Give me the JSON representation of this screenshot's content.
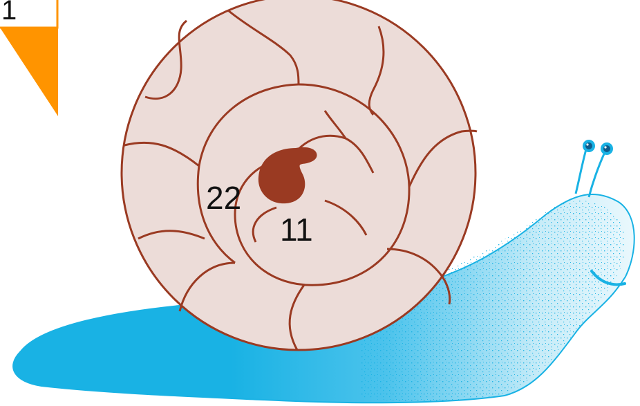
{
  "corner_box": {
    "label": "1"
  },
  "shell": {
    "outer_number": "22",
    "inner_number": "11"
  },
  "colors": {
    "shell_fill": "#ecdcd8",
    "shell_stroke": "#9a3a22",
    "shell_center": "#9a3a22",
    "body": "#19b2e4",
    "body_light": "#8fd6f1",
    "arrow": "#ff9400",
    "eye": "#0f5c8c"
  }
}
